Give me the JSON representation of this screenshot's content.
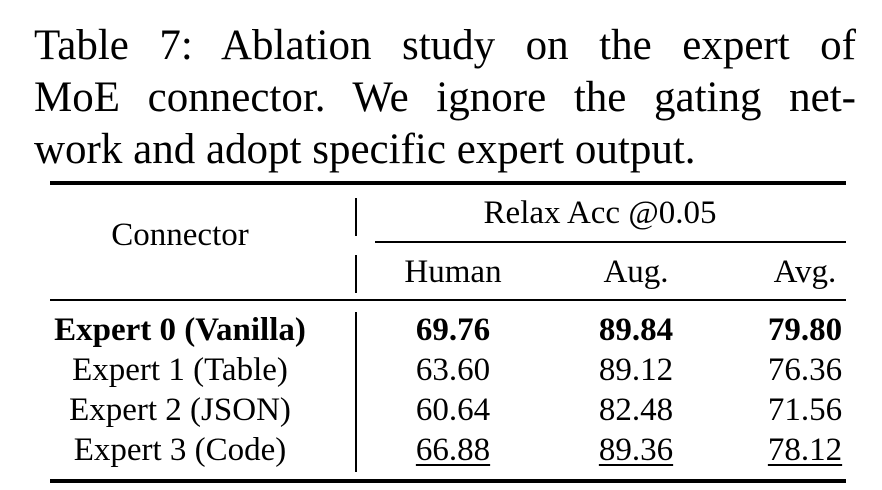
{
  "caption": {
    "lines": [
      "Table 7: Ablation study on the expert of",
      "MoE connector. We ignore the gating net-",
      "work and adopt specific expert output."
    ]
  },
  "table": {
    "row_header": "Connector",
    "group_header": "Relax Acc @0.05",
    "columns": [
      "Human",
      "Aug.",
      "Avg."
    ],
    "rows": [
      [
        "Expert 0 (Vanilla)",
        "69.76",
        "89.84",
        "79.80"
      ],
      [
        "Expert 1 (Table)",
        "63.60",
        "89.12",
        "76.36"
      ],
      [
        "Expert 2 (JSON)",
        "60.64",
        "82.48",
        "71.56"
      ],
      [
        "Expert 3 (Code)",
        "66.88",
        "89.36",
        "78.12"
      ]
    ]
  }
}
